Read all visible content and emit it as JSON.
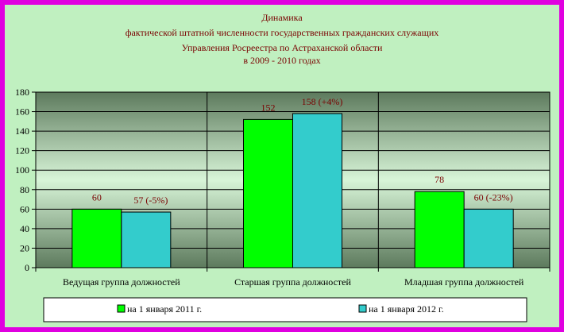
{
  "colors": {
    "frame": "#e000e0",
    "background": "#c0f0c0",
    "series1": "#00ff00",
    "series2": "#33cccc",
    "text": "#7a0000"
  },
  "chart_data": {
    "type": "bar",
    "title_lines": [
      "Динамика",
      "фактической штатной численности государственных гражданских служащих",
      "Управления Росреестра по Астраханской области",
      "в 2009 - 2010 годах"
    ],
    "categories": [
      "Ведущая группа должностей",
      "Старшая группа должностей",
      "Младшая группа должностей"
    ],
    "series": [
      {
        "name": "на 1 января 2011 г.",
        "color": "#00ff00",
        "values": [
          60,
          152,
          78
        ],
        "labels": [
          "60",
          "152",
          "78"
        ]
      },
      {
        "name": "на 1 января 2012 г.",
        "color": "#33cccc",
        "values": [
          57,
          158,
          60
        ],
        "labels": [
          "57 (-5%)",
          "158 (+4%)",
          "60 (-23%)"
        ]
      }
    ],
    "ylim": [
      0,
      180
    ],
    "yticks": [
      0,
      20,
      40,
      60,
      80,
      100,
      120,
      140,
      160,
      180
    ],
    "grid": true,
    "legend_position": "bottom"
  }
}
